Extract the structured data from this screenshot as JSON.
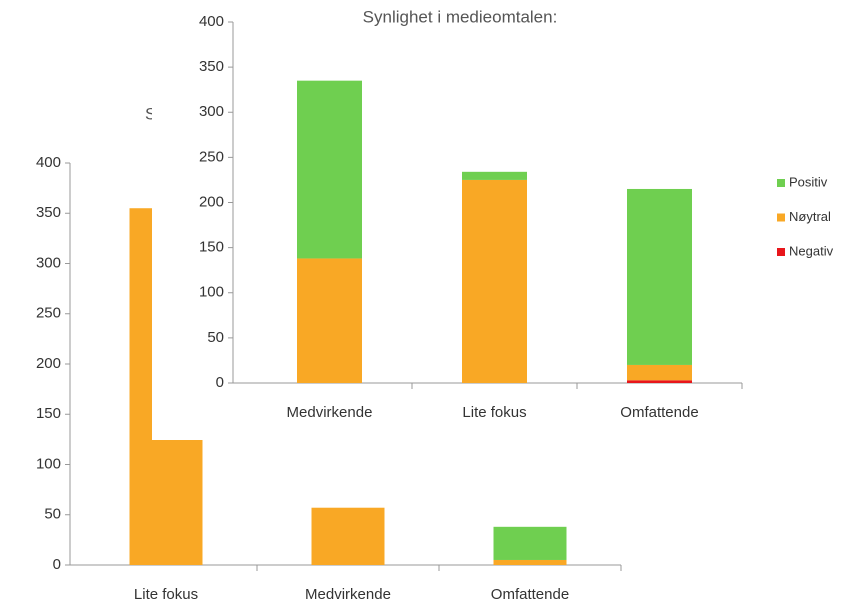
{
  "chart_data": [
    {
      "type": "bar",
      "title": "S",
      "categories": [
        "Lite fokus",
        "Medvirkende",
        "Omfattende"
      ],
      "series": [
        {
          "name": "Negativ",
          "color": "#e8161b",
          "values": [
            0,
            0,
            0
          ]
        },
        {
          "name": "Nøytral",
          "color": "#f9a825",
          "values": [
            355,
            57,
            5
          ]
        },
        {
          "name": "Positiv",
          "color": "#6fcf50",
          "values": [
            0,
            0,
            33
          ]
        }
      ],
      "stacked": true,
      "ylim": [
        0,
        400
      ],
      "yticks": [
        0,
        50,
        100,
        150,
        200,
        250,
        300,
        350,
        400
      ]
    },
    {
      "type": "bar",
      "title": "Synlighet i medieomtalen:",
      "categories": [
        "Medvirkende",
        "Lite fokus",
        "Omfattende"
      ],
      "series": [
        {
          "name": "Negativ",
          "color": "#e8161b",
          "values": [
            0,
            0,
            3
          ]
        },
        {
          "name": "Nøytral",
          "color": "#f9a825",
          "values": [
            138,
            225,
            17
          ]
        },
        {
          "name": "Positiv",
          "color": "#6fcf50",
          "values": [
            197,
            9,
            195
          ]
        }
      ],
      "stacked": true,
      "ylim": [
        0,
        400
      ],
      "yticks": [
        0,
        50,
        100,
        150,
        200,
        250,
        300,
        350,
        400
      ],
      "legend": "right"
    }
  ]
}
